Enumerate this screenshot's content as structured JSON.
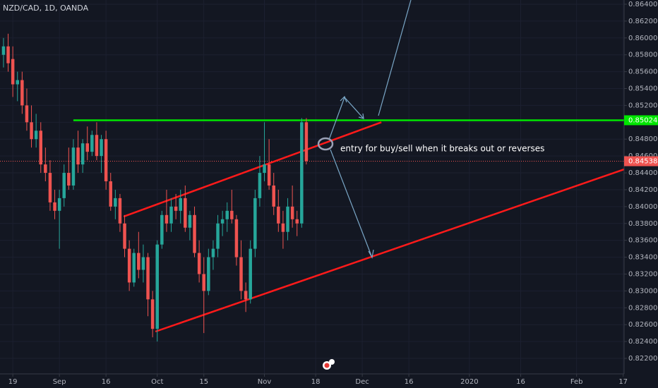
{
  "chart_data": {
    "type": "candlestick",
    "title": "NZD/CAD, 1D, OANDA",
    "annotation": "entry for buy/sell when it breaks out or reverses",
    "up_color": "#26a69a",
    "down_color": "#ef5350",
    "grid": true,
    "xlim": [
      -0.75,
      133.2
    ],
    "ylim": [
      0.82016,
      0.8645
    ],
    "xticks": [
      {
        "value": 2,
        "label": "19"
      },
      {
        "value": 12,
        "label": "Sep"
      },
      {
        "value": 22,
        "label": "16"
      },
      {
        "value": 33,
        "label": "Oct"
      },
      {
        "value": 43,
        "label": "15"
      },
      {
        "value": 56,
        "label": "Nov"
      },
      {
        "value": 67,
        "label": "18"
      },
      {
        "value": 77,
        "label": "Dec"
      },
      {
        "value": 87,
        "label": "16"
      },
      {
        "value": 100,
        "label": "2020"
      },
      {
        "value": 111,
        "label": "16"
      },
      {
        "value": 123,
        "label": "Feb"
      },
      {
        "value": 133,
        "label": "17"
      }
    ],
    "yticks": [
      {
        "value": 0.822,
        "label": "0.82200"
      },
      {
        "value": 0.824,
        "label": "0.82400"
      },
      {
        "value": 0.826,
        "label": "0.82600"
      },
      {
        "value": 0.828,
        "label": "0.82800"
      },
      {
        "value": 0.83,
        "label": "0.83000"
      },
      {
        "value": 0.832,
        "label": "0.83200"
      },
      {
        "value": 0.834,
        "label": "0.83400"
      },
      {
        "value": 0.836,
        "label": "0.83600"
      },
      {
        "value": 0.838,
        "label": "0.83800"
      },
      {
        "value": 0.84,
        "label": "0.84000"
      },
      {
        "value": 0.842,
        "label": "0.84200"
      },
      {
        "value": 0.844,
        "label": "0.84400"
      },
      {
        "value": 0.846,
        "label": "0.84600"
      },
      {
        "value": 0.848,
        "label": "0.84800"
      },
      {
        "value": 0.85,
        "label": "0.85000"
      },
      {
        "value": 0.852,
        "label": "0.85200"
      },
      {
        "value": 0.854,
        "label": "0.85400"
      },
      {
        "value": 0.856,
        "label": "0.85600"
      },
      {
        "value": 0.858,
        "label": "0.85800"
      },
      {
        "value": 0.86,
        "label": "0.86000"
      },
      {
        "value": 0.862,
        "label": "0.86200"
      },
      {
        "value": 0.864,
        "label": "0.86400"
      }
    ],
    "open": [
      0.858,
      0.859,
      0.8575,
      0.8545,
      0.855,
      0.852,
      0.85,
      0.848,
      0.849,
      0.845,
      0.844,
      0.8405,
      0.8395,
      0.841,
      0.844,
      0.8425,
      0.847,
      0.845,
      0.8475,
      0.8465,
      0.8485,
      0.846,
      0.848,
      0.843,
      0.84,
      0.841,
      0.838,
      0.835,
      0.831,
      0.8345,
      0.8325,
      0.834,
      0.829,
      0.8255,
      0.8355,
      0.839,
      0.838,
      0.84,
      0.8395,
      0.841,
      0.8375,
      0.839,
      0.8345,
      0.832,
      0.83,
      0.834,
      0.835,
      0.838,
      0.8385,
      0.8395,
      0.8385,
      0.834,
      0.83,
      0.829,
      0.835,
      0.841,
      0.844,
      0.845,
      0.8425,
      0.84,
      0.838,
      0.837,
      0.84,
      0.8385,
      0.838,
      0.85
    ],
    "high": [
      0.86,
      0.8605,
      0.859,
      0.856,
      0.856,
      0.854,
      0.852,
      0.851,
      0.85,
      0.847,
      0.8455,
      0.842,
      0.842,
      0.845,
      0.847,
      0.848,
      0.849,
      0.848,
      0.8495,
      0.849,
      0.85,
      0.8485,
      0.849,
      0.844,
      0.842,
      0.8415,
      0.839,
      0.836,
      0.835,
      0.837,
      0.8355,
      0.8345,
      0.83,
      0.836,
      0.8395,
      0.842,
      0.841,
      0.8415,
      0.842,
      0.8425,
      0.8395,
      0.84,
      0.836,
      0.834,
      0.835,
      0.836,
      0.839,
      0.8395,
      0.8405,
      0.842,
      0.839,
      0.836,
      0.831,
      0.836,
      0.842,
      0.846,
      0.85,
      0.848,
      0.844,
      0.842,
      0.8395,
      0.841,
      0.8425,
      0.8395,
      0.8505,
      0.8505
    ],
    "low": [
      0.8565,
      0.856,
      0.853,
      0.8525,
      0.851,
      0.849,
      0.847,
      0.847,
      0.844,
      0.843,
      0.8395,
      0.8385,
      0.835,
      0.84,
      0.842,
      0.842,
      0.844,
      0.844,
      0.8455,
      0.846,
      0.8455,
      0.844,
      0.842,
      0.8395,
      0.8385,
      0.837,
      0.834,
      0.83,
      0.8305,
      0.8315,
      0.831,
      0.827,
      0.8245,
      0.824,
      0.835,
      0.837,
      0.837,
      0.8385,
      0.838,
      0.837,
      0.836,
      0.834,
      0.831,
      0.825,
      0.8295,
      0.8325,
      0.834,
      0.8365,
      0.837,
      0.838,
      0.833,
      0.829,
      0.8275,
      0.8285,
      0.834,
      0.84,
      0.843,
      0.842,
      0.839,
      0.837,
      0.835,
      0.836,
      0.8375,
      0.8365,
      0.8375,
      0.845
    ],
    "close": [
      0.859,
      0.857,
      0.8545,
      0.855,
      0.852,
      0.85,
      0.848,
      0.849,
      0.845,
      0.844,
      0.8405,
      0.8395,
      0.841,
      0.844,
      0.8425,
      0.847,
      0.845,
      0.8475,
      0.8465,
      0.8485,
      0.846,
      0.848,
      0.843,
      0.84,
      0.841,
      0.838,
      0.835,
      0.831,
      0.8345,
      0.8325,
      0.834,
      0.829,
      0.8255,
      0.8355,
      0.839,
      0.838,
      0.84,
      0.8395,
      0.841,
      0.8375,
      0.839,
      0.8345,
      0.832,
      0.83,
      0.834,
      0.835,
      0.838,
      0.8385,
      0.8395,
      0.8385,
      0.834,
      0.83,
      0.829,
      0.835,
      0.841,
      0.844,
      0.845,
      0.8425,
      0.84,
      0.838,
      0.837,
      0.84,
      0.8385,
      0.838,
      0.85,
      0.8454
    ],
    "level": {
      "value": 0.85024,
      "start": 15,
      "color": "#00e600"
    },
    "last_price": {
      "value": 0.84538,
      "color": "#ef5350"
    },
    "trend_lines": [
      {
        "x": [
          25.8,
          81.1
        ],
        "y": [
          0.83882,
          0.85
        ],
        "color": "#ff1a1a"
      },
      {
        "x": [
          32.6,
          133.2
        ],
        "y": [
          0.82518,
          0.84442
        ],
        "color": "#ff1a1a"
      }
    ]
  }
}
